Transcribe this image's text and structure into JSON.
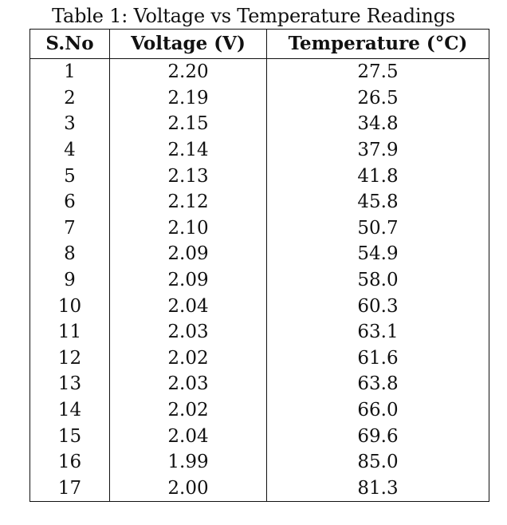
{
  "table": {
    "caption": "Table 1: Voltage vs Temperature Readings",
    "headers": [
      "S.No",
      "Voltage (V)",
      "Temperature (°C)"
    ],
    "rows": [
      [
        "1",
        "2.20",
        "27.5"
      ],
      [
        "2",
        "2.19",
        "26.5"
      ],
      [
        "3",
        "2.15",
        "34.8"
      ],
      [
        "4",
        "2.14",
        "37.9"
      ],
      [
        "5",
        "2.13",
        "41.8"
      ],
      [
        "6",
        "2.12",
        "45.8"
      ],
      [
        "7",
        "2.10",
        "50.7"
      ],
      [
        "8",
        "2.09",
        "54.9"
      ],
      [
        "9",
        "2.09",
        "58.0"
      ],
      [
        "10",
        "2.04",
        "60.3"
      ],
      [
        "11",
        "2.03",
        "63.1"
      ],
      [
        "12",
        "2.02",
        "61.6"
      ],
      [
        "13",
        "2.03",
        "63.8"
      ],
      [
        "14",
        "2.02",
        "66.0"
      ],
      [
        "15",
        "2.04",
        "69.6"
      ],
      [
        "16",
        "1.99",
        "85.0"
      ],
      [
        "17",
        "2.00",
        "81.3"
      ]
    ]
  }
}
